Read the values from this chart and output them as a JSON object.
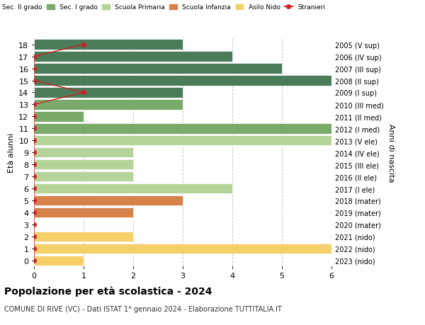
{
  "ages": [
    18,
    17,
    16,
    15,
    14,
    13,
    12,
    11,
    10,
    9,
    8,
    7,
    6,
    5,
    4,
    3,
    2,
    1,
    0
  ],
  "years": [
    "2005 (V sup)",
    "2006 (IV sup)",
    "2007 (III sup)",
    "2008 (II sup)",
    "2009 (I sup)",
    "2010 (III med)",
    "2011 (II med)",
    "2012 (I med)",
    "2013 (V ele)",
    "2014 (IV ele)",
    "2015 (III ele)",
    "2016 (II ele)",
    "2017 (I ele)",
    "2018 (mater)",
    "2019 (mater)",
    "2020 (mater)",
    "2021 (nido)",
    "2022 (nido)",
    "2023 (nido)"
  ],
  "bar_values": [
    3,
    4,
    5,
    6,
    3,
    3,
    1,
    6,
    6,
    2,
    2,
    2,
    4,
    3,
    2,
    0,
    2,
    6,
    1
  ],
  "bar_colors": [
    "#4a7c59",
    "#4a7c59",
    "#4a7c59",
    "#4a7c59",
    "#4a7c59",
    "#7aaa6a",
    "#7aaa6a",
    "#7aaa6a",
    "#b5d49a",
    "#b5d49a",
    "#b5d49a",
    "#b5d49a",
    "#b5d49a",
    "#d4824a",
    "#d4824a",
    "#d4824a",
    "#f5d06a",
    "#f5d06a",
    "#f5d06a"
  ],
  "stranieri_values": [
    1,
    0,
    0,
    0,
    1,
    0,
    0,
    0,
    0,
    0,
    0,
    0,
    0,
    0,
    0,
    0,
    0,
    0,
    0
  ],
  "stranieri_line_ages": [
    18,
    17,
    16,
    15,
    14,
    13
  ],
  "stranieri_line_values": [
    1,
    0,
    0,
    0,
    1,
    0
  ],
  "stranieri_dot_ages": [
    18,
    17,
    16,
    15,
    14,
    13,
    12,
    11,
    10,
    9,
    8,
    7,
    6,
    5,
    4,
    3,
    2,
    1,
    0
  ],
  "stranieri_dot_x": [
    1,
    0,
    0,
    0,
    1,
    0,
    0,
    0,
    0,
    0,
    0,
    0,
    0,
    0,
    0,
    0,
    0,
    0,
    0
  ],
  "title": "Popolazione per età scolastica - 2024",
  "subtitle": "COMUNE DI RIVE (VC) - Dati ISTAT 1° gennaio 2024 - Elaborazione TUTTITALIA.IT",
  "ylabel_left": "Età alunni",
  "ylabel_right": "Anni di nascita",
  "xlim": [
    0,
    6
  ],
  "xticks": [
    0,
    1,
    2,
    3,
    4,
    5,
    6
  ],
  "color_sec2": "#4a7c59",
  "color_sec1": "#7aaa6a",
  "color_primaria": "#b5d49a",
  "color_infanzia": "#d4824a",
  "color_nido": "#f5d06a",
  "color_stranieri": "#cc2222",
  "bg_color": "#ffffff",
  "grid_color": "#cccccc"
}
